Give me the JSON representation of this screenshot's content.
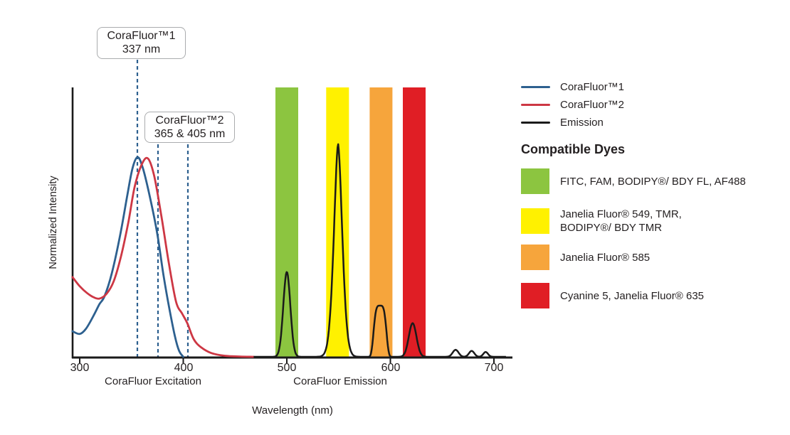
{
  "colors": {
    "marker_blue": "#2d608f",
    "axis_black": "#1a1a1a",
    "text": "#231f20"
  },
  "annotations": [
    {
      "line1": "CoraFluor™1",
      "line2": "337 nm",
      "marker_nms": [
        355.7
      ]
    },
    {
      "line1": "CoraFluor™2",
      "line2": "365 & 405 nm",
      "marker_nms": [
        375.6,
        404.5
      ]
    }
  ],
  "legend": {
    "items": [
      {
        "label": "CoraFluor™1",
        "color": "#2d608f"
      },
      {
        "label": "CoraFluor™2",
        "color": "#cd3744"
      },
      {
        "label": "Emission",
        "color": "#1a1a1a"
      }
    ]
  },
  "compatible_dyes": {
    "heading": "Compatible Dyes",
    "items": [
      {
        "name": "green",
        "color": "#8cc540",
        "label": "FITC, FAM, BODIPY®/ BDY FL, AF488"
      },
      {
        "name": "yellow",
        "color": "#fff100",
        "label": "Janelia Fluor® 549, TMR,\nBODIPY®/ BDY TMR"
      },
      {
        "name": "orange",
        "color": "#f6a53c",
        "label": "Janelia Fluor® 585"
      },
      {
        "name": "red",
        "color": "#e01e25",
        "label": "Cyanine 5, Janelia Fluor® 635"
      }
    ]
  },
  "chart_data": {
    "type": "line",
    "title": "CoraFluor excitation and emission spectra with compatible dye windows",
    "xlabel": "Wavelength (nm)",
    "ylabel": "Normalized Intensity",
    "x_ticks": [
      300,
      400,
      500,
      600,
      700
    ],
    "x_range_nm": [
      293,
      714
    ],
    "y_range": [
      0,
      1
    ],
    "grid": false,
    "legend_position": "right",
    "axis_section_labels": [
      {
        "label": "CoraFluor Excitation"
      },
      {
        "label": "CoraFluor Emission"
      }
    ],
    "bands": [
      {
        "name": "green",
        "color": "#8cc540",
        "from_nm": 489,
        "to_nm": 511
      },
      {
        "name": "yellow",
        "color": "#fff100",
        "from_nm": 538,
        "to_nm": 560
      },
      {
        "name": "orange",
        "color": "#f6a53c",
        "from_nm": 580,
        "to_nm": 602
      },
      {
        "name": "red",
        "color": "#e01e25",
        "from_nm": 612,
        "to_nm": 634
      }
    ],
    "series": [
      {
        "name": "CoraFluor™1 excitation",
        "color": "#2d608f",
        "points": [
          [
            293,
            0.095
          ],
          [
            300,
            0.085
          ],
          [
            306,
            0.104
          ],
          [
            313,
            0.15
          ],
          [
            319,
            0.195
          ],
          [
            324,
            0.225
          ],
          [
            331,
            0.31
          ],
          [
            339,
            0.45
          ],
          [
            346,
            0.6
          ],
          [
            351,
            0.7
          ],
          [
            356,
            0.741
          ],
          [
            361,
            0.7
          ],
          [
            368,
            0.59
          ],
          [
            375,
            0.455
          ],
          [
            381,
            0.3
          ],
          [
            387,
            0.17
          ],
          [
            392,
            0.075
          ],
          [
            396,
            0.022
          ],
          [
            400,
            0
          ]
        ]
      },
      {
        "name": "CoraFluor™2 excitation",
        "color": "#cd3744",
        "points": [
          [
            293,
            0.296
          ],
          [
            300,
            0.262
          ],
          [
            307,
            0.237
          ],
          [
            313,
            0.222
          ],
          [
            319,
            0.216
          ],
          [
            326,
            0.234
          ],
          [
            333,
            0.282
          ],
          [
            340,
            0.375
          ],
          [
            347,
            0.5
          ],
          [
            353,
            0.63
          ],
          [
            360,
            0.715
          ],
          [
            366,
            0.736
          ],
          [
            372,
            0.67
          ],
          [
            379,
            0.52
          ],
          [
            386,
            0.35
          ],
          [
            393,
            0.205
          ],
          [
            399,
            0.16
          ],
          [
            404,
            0.124
          ],
          [
            410,
            0.066
          ],
          [
            417,
            0.036
          ],
          [
            427,
            0.014
          ],
          [
            440,
            0.004
          ],
          [
            455,
            0.001
          ],
          [
            468,
            0
          ]
        ]
      },
      {
        "name": "Emission",
        "color": "#1a1a1a",
        "range_nm": [
          468,
          712
        ],
        "peaks": [
          {
            "center_nm": 500,
            "height": 0.315,
            "width": 4.8,
            "exponent": 2
          },
          {
            "center_nm": 549.5,
            "height": 0.79,
            "width": 5.8,
            "exponent": 1.7
          },
          {
            "center_nm": 590,
            "height": 0.19,
            "width": 6.8,
            "exponent": 4
          },
          {
            "center_nm": 621.5,
            "height": 0.125,
            "width": 5.2,
            "exponent": 2
          },
          {
            "center_nm": 663,
            "height": 0.026,
            "width": 4.0,
            "exponent": 2
          },
          {
            "center_nm": 678.5,
            "height": 0.022,
            "width": 3.6,
            "exponent": 2
          },
          {
            "center_nm": 692,
            "height": 0.018,
            "width": 3.2,
            "exponent": 2
          }
        ]
      }
    ]
  }
}
